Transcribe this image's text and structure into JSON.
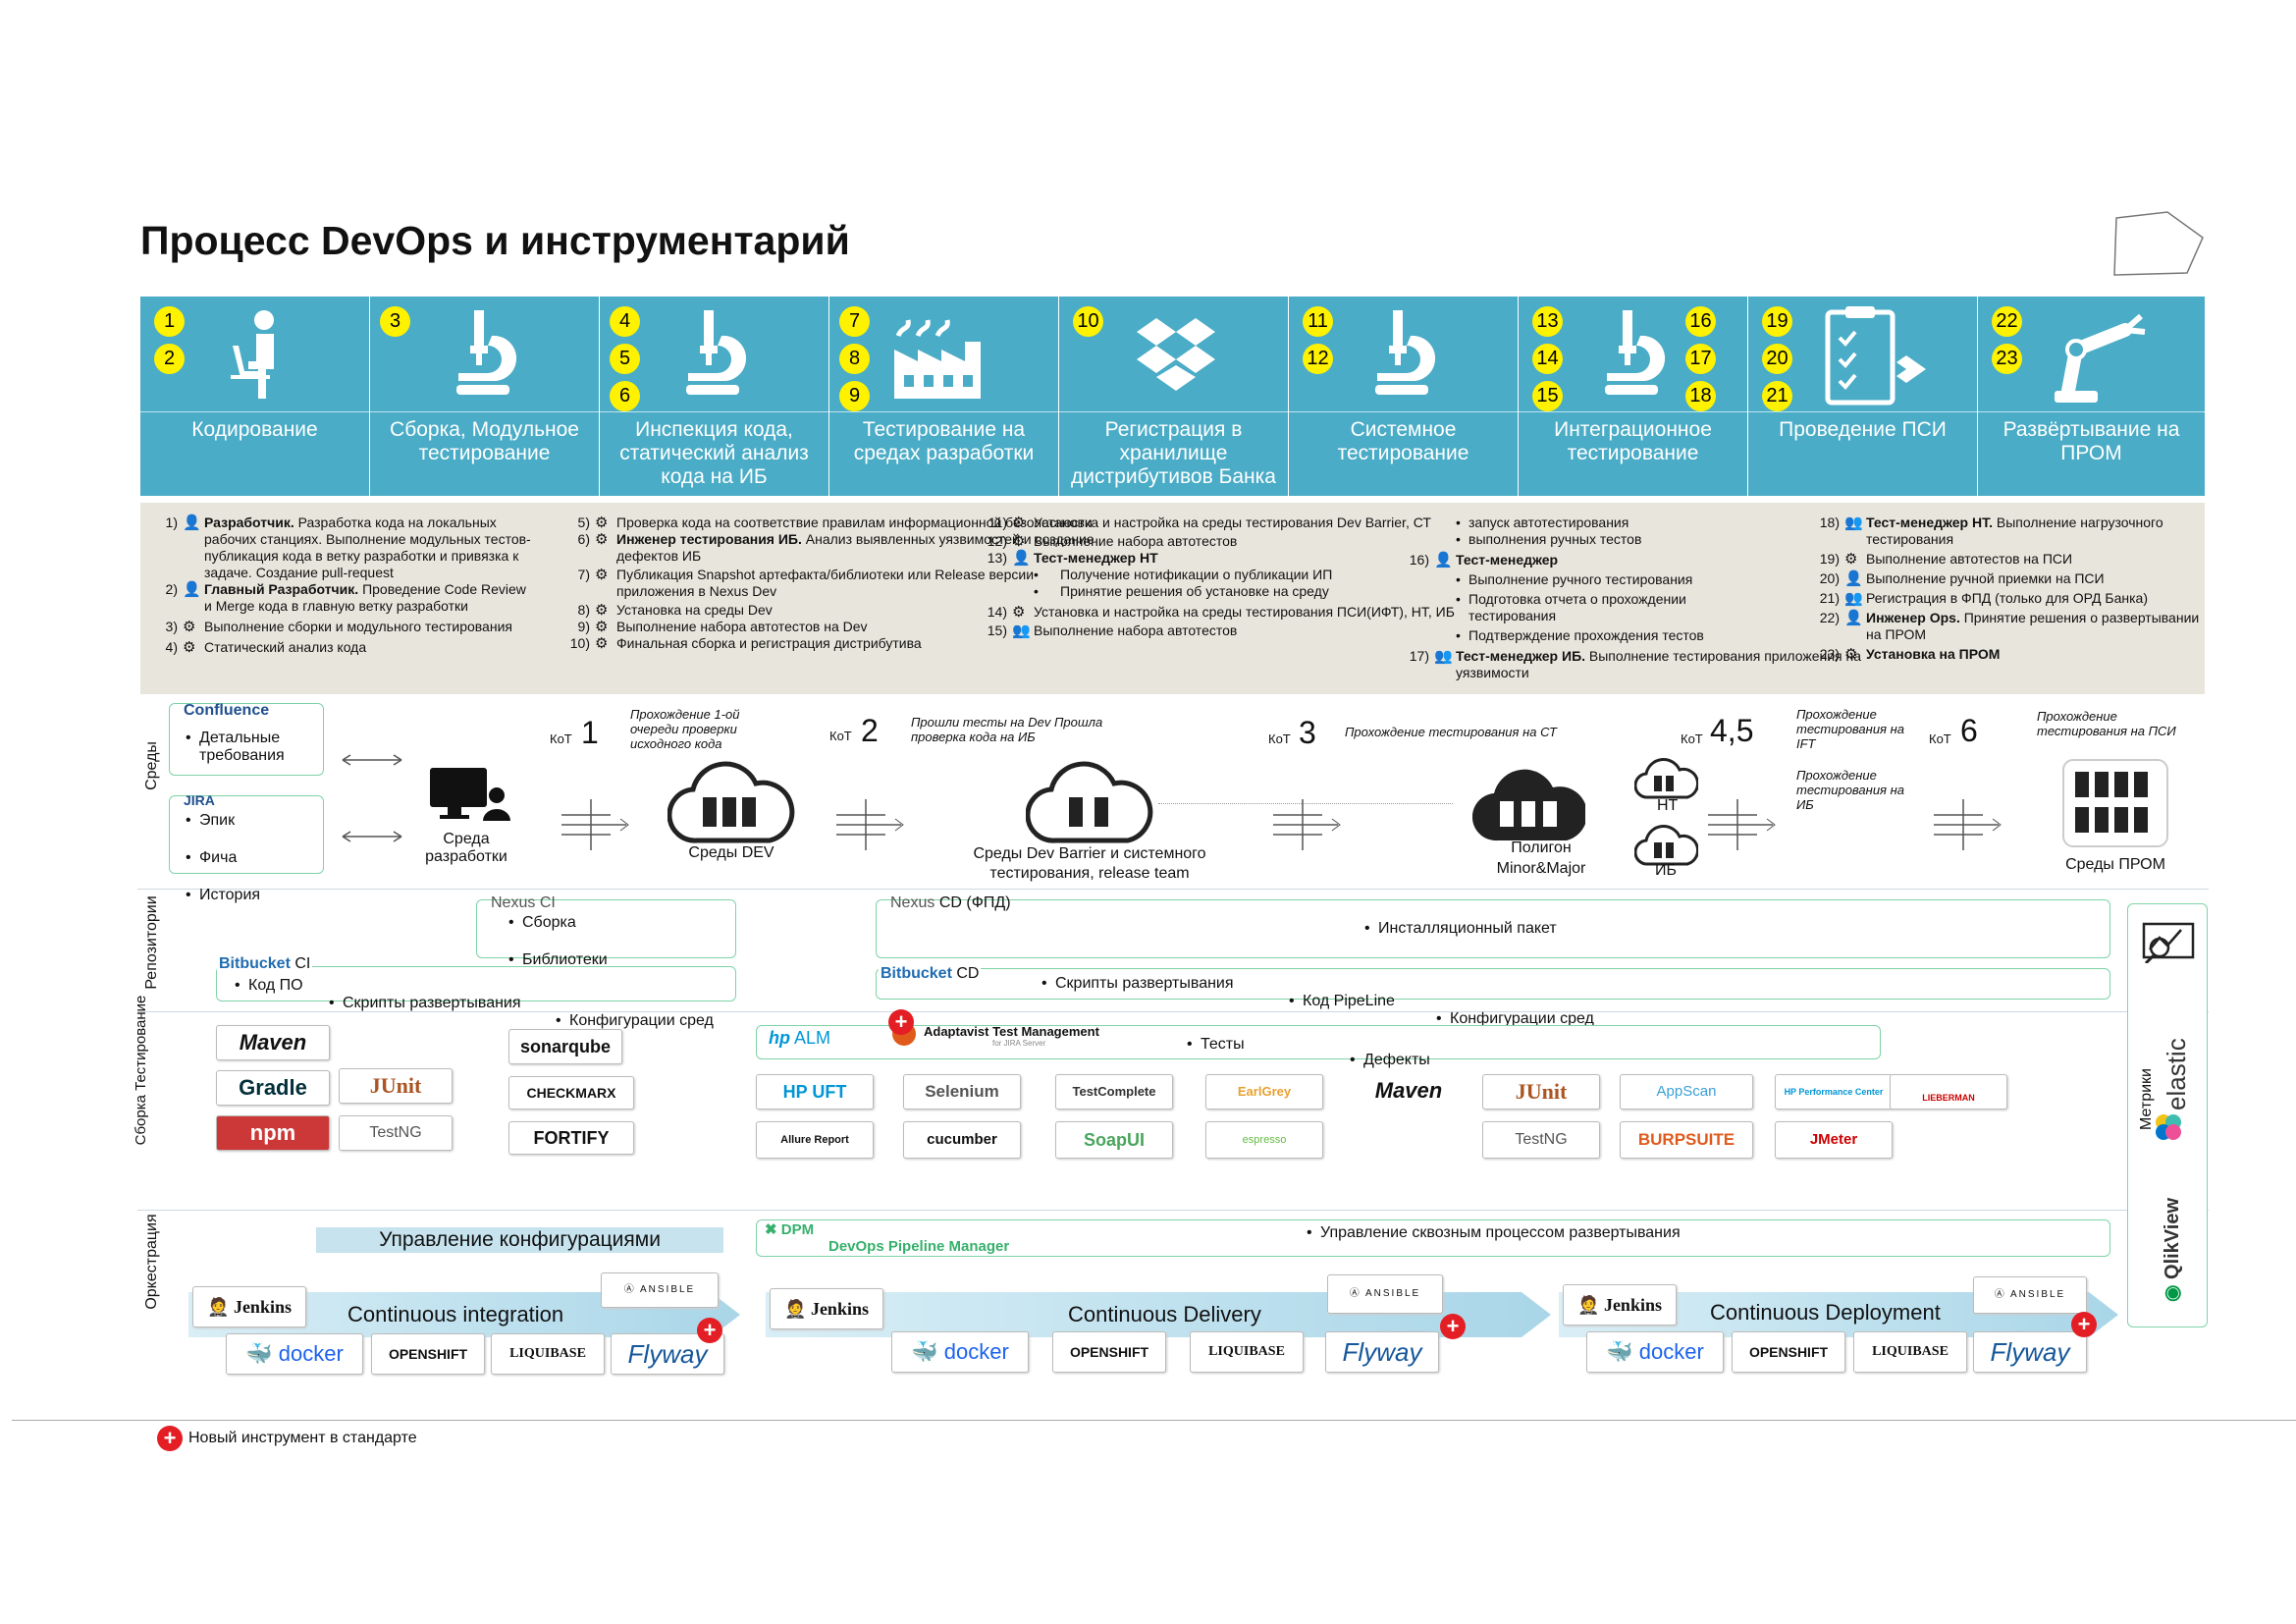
{
  "title": "Процесс DevOps и инструментарий",
  "stages": [
    {
      "nums": [
        "1",
        "2"
      ],
      "label": "Кодирование",
      "icon": "developer-icon"
    },
    {
      "nums": [
        "3"
      ],
      "label": "Сборка, Модульное тестирование",
      "icon": "microscope-icon"
    },
    {
      "nums": [
        "4",
        "5",
        "6"
      ],
      "label": "Инспекция кода, статический анализ кода на ИБ",
      "icon": "microscope-icon"
    },
    {
      "nums": [
        "7",
        "8",
        "9"
      ],
      "label": "Тестирование на средах разработки",
      "icon": "factory-icon"
    },
    {
      "nums": [
        "10"
      ],
      "label": "Регистрация в хранилище дистрибутивов Банка",
      "icon": "dropbox-icon"
    },
    {
      "nums": [
        "11",
        "12"
      ],
      "label": "Системное тестирование",
      "icon": "microscope-icon"
    },
    {
      "nums": [
        "13",
        "14",
        "15",
        "16",
        "17",
        "18"
      ],
      "label": "Интеграционное тестирование",
      "icon": "microscope-icon"
    },
    {
      "nums": [
        "19",
        "20",
        "21"
      ],
      "label": "Проведение ПСИ",
      "icon": "clipboard-icon"
    },
    {
      "nums": [
        "22",
        "23"
      ],
      "label": "Развёртывание на ПРОМ",
      "icon": "robot-arm-icon"
    }
  ],
  "desc": {
    "c1": [
      {
        "n": "1)",
        "g": "person",
        "b": "Разработчик.",
        "t": " Разработка кода на локальных рабочих станциях. Выполнение модульных тестов-публикация кода в ветку разработки и привязка к задаче. Создание pull-request"
      },
      {
        "n": "2)",
        "g": "person",
        "b": "Главный Разработчик.",
        "t": " Проведение Code Review и Merge кода в главную ветку разработки"
      },
      {
        "n": "3)",
        "g": "gear",
        "b": "",
        "t": "Выполнение сборки и модульного тестирования"
      },
      {
        "n": "4)",
        "g": "gear",
        "b": "",
        "t": "Статический анализ кода"
      }
    ],
    "c2": [
      {
        "n": "5)",
        "g": "gear",
        "b": "",
        "t": "Проверка кода на соответствие правилам информационной безопасности"
      },
      {
        "n": "6)",
        "g": "gear",
        "b": "Инженер тестирования ИБ.",
        "t": " Анализ выявленных уязвимостей и создание дефектов ИБ"
      },
      {
        "n": "7)",
        "g": "gear",
        "b": "",
        "t": "Публикация Snapshot  артефакта/библиотеки или Release версии приложения в Nexus Dev"
      },
      {
        "n": "8)",
        "g": "gear",
        "b": "",
        "t": "Установка на среды Dev"
      },
      {
        "n": "9)",
        "g": "gear",
        "b": "",
        "t": "Выполнение набора автотестов на Dev"
      },
      {
        "n": "10)",
        "g": "gear",
        "b": "",
        "t": "Финальная сборка и регистрация дистрибутива"
      }
    ],
    "c3a": [
      {
        "n": "11)",
        "g": "gear",
        "b": "",
        "t": "Установка и настройка на среды тестирования Dev Barrier, СТ"
      },
      {
        "n": "12)",
        "g": "gear",
        "b": "",
        "t": "Выполнение набора автотестов"
      },
      {
        "n": "13)",
        "g": "person",
        "b": "Тест-менеджер НТ",
        "t": ""
      }
    ],
    "c3sub": [
      "Получение нотификации о публикации ИП",
      "Принятие решения об установке на среду"
    ],
    "c3b": [
      {
        "n": "14)",
        "g": "gear",
        "b": "",
        "t": "Установка и настройка на среды тестирования ПСИ(ИФТ), НТ, ИБ"
      },
      {
        "n": "15)",
        "g": "persongear",
        "b": "",
        "t": "Выполнение набора автотестов"
      }
    ],
    "c4top": [
      "запуск автотестирования",
      "выполнения ручных тестов"
    ],
    "c4_16": {
      "n": "16)",
      "b": "Тест-менеджер"
    },
    "c4sub": [
      "Выполнение ручного тестирования",
      "Подготовка отчета о прохождении тестирования",
      "Подтверждение прохождения тестов"
    ],
    "c4_17": {
      "n": "17)",
      "b": "Тест-менеджер ИБ.",
      "t": " Выполнение тестирования приложения  на уязвимости"
    },
    "c5": [
      {
        "n": "18)",
        "g": "persongear",
        "b": "Тест-менеджер НТ.",
        "t": " Выполнение нагрузочного тестирования"
      },
      {
        "n": "19)",
        "g": "gear",
        "b": "",
        "t": "Выполнение автотестов на ПСИ"
      },
      {
        "n": "20)",
        "g": "person",
        "b": "",
        "t": "Выполнение  ручной  приемки на ПСИ"
      },
      {
        "n": "21)",
        "g": "persongear",
        "b": "",
        "t": "Регистрация в ФПД (только для ОРД Банка)"
      },
      {
        "n": "22)",
        "g": "person",
        "b": "Инженер Ops.",
        "t": " Принятие решения о развертывании на ПРОМ"
      },
      {
        "n": "23)",
        "g": "gear",
        "b": "Установка на ПРОМ",
        "t": ""
      }
    ]
  },
  "rows": {
    "env": "Среды",
    "repo": "Репозитории",
    "build": "Сборка Тестирование",
    "orch": "Оркестрация",
    "metrics": "Метрики"
  },
  "env": {
    "confluence": "Confluence",
    "conf_items": [
      "Детальные требования"
    ],
    "jira": "JIRA",
    "jira_items": [
      "Эпик",
      "Фича",
      "История"
    ],
    "dev_env": "Среда разработки",
    "kot": "КоТ",
    "g1": {
      "n": "1",
      "note": "Прохождение 1-ой очереди проверки исходного кода",
      "env": "Среды DEV"
    },
    "g2": {
      "n": "2",
      "note": "Прошли тесты на Dev Прошла проверка кода на ИБ",
      "env": "Среды Dev Barrier и системного тестирования, release team"
    },
    "g3": {
      "n": "3",
      "note": "Прохождение тестирования на СТ",
      "env": "Полигон",
      "env2": "Minor&Major"
    },
    "g45": {
      "n": "4,5",
      "note1": "Прохождение тестирования на IFT",
      "note2": "Прохождение тестирования на ИБ",
      "nt": "НТ",
      "ib": "ИБ"
    },
    "g6": {
      "n": "6",
      "note": "Прохождение тестирования на ПСИ",
      "env": "Среды ПРОМ"
    }
  },
  "repo": {
    "nexus_ci": "Nexus",
    "ci": "CI",
    "ci_items": [
      "Сборка",
      "Библиотеки"
    ],
    "bitbucket": "Bitbucket",
    "bb_ci_items": [
      "Код ПО",
      "Скрипты развертывания",
      "Конфигурации сред"
    ],
    "nexus_cd": "Nexus",
    "cd_fpd": "CD (ФПД)",
    "cd_item": "Инсталляционный пакет",
    "cd": "CD",
    "bb_cd_items": [
      "Скрипты развертывания",
      "Код PipeLine",
      "Конфигурации сред"
    ]
  },
  "build": {
    "left": [
      "Maven",
      "Gradle",
      "JUnit",
      "npm",
      "TestNG",
      "sonarqube",
      "CHECKMARX",
      "FORTIFY"
    ],
    "alm": "ALM",
    "adaptavist": "Adaptavist Test Management",
    "adaptavist_sub": "for JIRA Server",
    "alm_items": [
      "Тесты",
      "Дефекты"
    ],
    "right": [
      "HP UFT",
      "Selenium",
      "TestComplete",
      "EarlGrey",
      "Maven",
      "JUnit",
      "AppScan",
      "HP Performance Center",
      "LIEBERMAN",
      "Allure Report",
      "cucumber",
      "SoapUI",
      "espresso",
      "TestNG",
      "BURPSUITE",
      "JMeter"
    ]
  },
  "orch": {
    "config": "Управление конфигурациями",
    "dpm": "DPM",
    "dpm_full": "DevOps Pipeline Manager",
    "dpm_item": "Управление сквозным процессом  развертывания",
    "ci": "Continuous integration",
    "cd": "Continuous Delivery",
    "cdep": "Continuous Deployment",
    "jenkins": "Jenkins",
    "ansible": "ANSIBLE",
    "docker": "docker",
    "openshift": "OPENSHIFT",
    "liquibase": "LIQUIBASE",
    "flyway": "Flyway"
  },
  "metrics": {
    "elastic": "elastic",
    "qlik": "QlikView"
  },
  "legend": "Новый инструмент в стандарте",
  "colors": {
    "band": "#4aacc6",
    "num": "#fff200",
    "desc_bg": "#e8e5dc",
    "green": "#7fd3a8",
    "plus": "#e31e24"
  }
}
